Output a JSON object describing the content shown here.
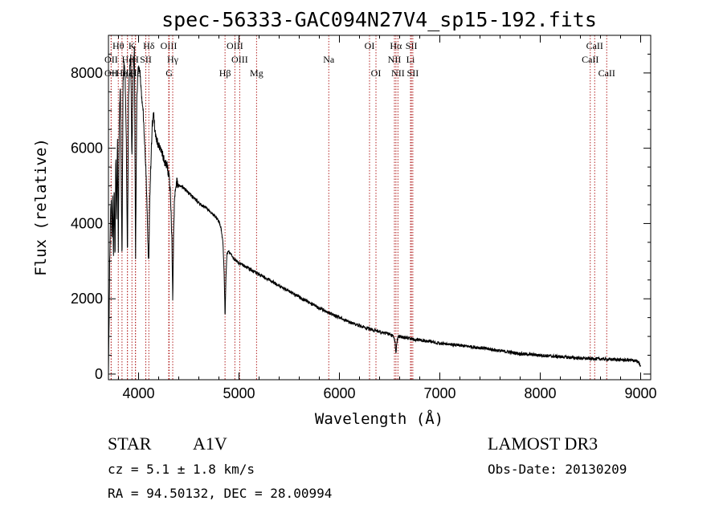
{
  "chart_data": {
    "type": "line",
    "title": "spec-56333-GAC094N27V4_sp15-192.fits",
    "xlabel": "Wavelength (Å)",
    "ylabel": "Flux (relative)",
    "xlim": [
      3700,
      9100
    ],
    "ylim": [
      -150,
      9000
    ],
    "xticks": [
      4000,
      5000,
      6000,
      7000,
      8000,
      9000
    ],
    "yticks": [
      0,
      2000,
      4000,
      6000,
      8000
    ],
    "series": [
      {
        "name": "flux",
        "anchors": [
          [
            3700,
            0
          ],
          [
            3705,
            1200
          ],
          [
            3712,
            2900
          ],
          [
            3720,
            4200
          ],
          [
            3728,
            4600
          ],
          [
            3735,
            3400
          ],
          [
            3742,
            4700
          ],
          [
            3750,
            3100
          ],
          [
            3757,
            5200
          ],
          [
            3765,
            2900
          ],
          [
            3773,
            5800
          ],
          [
            3782,
            4200
          ],
          [
            3790,
            6300
          ],
          [
            3798,
            3300
          ],
          [
            3808,
            6800
          ],
          [
            3818,
            7600
          ],
          [
            3826,
            5600
          ],
          [
            3835,
            2900
          ],
          [
            3845,
            7700
          ],
          [
            3855,
            8300
          ],
          [
            3866,
            7900
          ],
          [
            3878,
            6100
          ],
          [
            3889,
            3100
          ],
          [
            3900,
            7400
          ],
          [
            3910,
            8100
          ],
          [
            3922,
            8500
          ],
          [
            3933,
            5600
          ],
          [
            3945,
            7800
          ],
          [
            3958,
            8700
          ],
          [
            3970,
            3000
          ],
          [
            3982,
            7300
          ],
          [
            3995,
            8200
          ],
          [
            4005,
            8100
          ],
          [
            4015,
            8000
          ],
          [
            4030,
            7400
          ],
          [
            4045,
            7000
          ],
          [
            4062,
            6100
          ],
          [
            4075,
            5300
          ],
          [
            4085,
            4300
          ],
          [
            4095,
            3200
          ],
          [
            4102,
            3050
          ],
          [
            4110,
            4400
          ],
          [
            4120,
            5400
          ],
          [
            4135,
            6600
          ],
          [
            4150,
            6900
          ],
          [
            4165,
            6400
          ],
          [
            4185,
            6200
          ],
          [
            4205,
            6050
          ],
          [
            4230,
            5900
          ],
          [
            4260,
            5650
          ],
          [
            4285,
            5500
          ],
          [
            4305,
            5250
          ],
          [
            4320,
            4600
          ],
          [
            4332,
            3500
          ],
          [
            4340,
            1950
          ],
          [
            4348,
            3600
          ],
          [
            4356,
            4500
          ],
          [
            4366,
            4900
          ],
          [
            4380,
            5100
          ],
          [
            4400,
            5000
          ],
          [
            4450,
            4950
          ],
          [
            4500,
            4800
          ],
          [
            4560,
            4650
          ],
          [
            4620,
            4500
          ],
          [
            4680,
            4400
          ],
          [
            4740,
            4250
          ],
          [
            4790,
            4100
          ],
          [
            4820,
            3900
          ],
          [
            4840,
            3500
          ],
          [
            4852,
            2700
          ],
          [
            4861,
            1500
          ],
          [
            4870,
            2600
          ],
          [
            4880,
            3200
          ],
          [
            4900,
            3250
          ],
          [
            4950,
            3050
          ],
          [
            5000,
            2950
          ],
          [
            5100,
            2800
          ],
          [
            5200,
            2650
          ],
          [
            5300,
            2500
          ],
          [
            5400,
            2350
          ],
          [
            5500,
            2200
          ],
          [
            5600,
            2050
          ],
          [
            5700,
            1900
          ],
          [
            5800,
            1750
          ],
          [
            5900,
            1620
          ],
          [
            6000,
            1500
          ],
          [
            6100,
            1380
          ],
          [
            6200,
            1290
          ],
          [
            6300,
            1200
          ],
          [
            6400,
            1120
          ],
          [
            6500,
            1060
          ],
          [
            6540,
            1000
          ],
          [
            6556,
            800
          ],
          [
            6563,
            520
          ],
          [
            6570,
            800
          ],
          [
            6585,
            1000
          ],
          [
            6650,
            970
          ],
          [
            6750,
            920
          ],
          [
            6900,
            870
          ],
          [
            7000,
            820
          ],
          [
            7200,
            760
          ],
          [
            7400,
            700
          ],
          [
            7600,
            620
          ],
          [
            7800,
            540
          ],
          [
            8000,
            500
          ],
          [
            8200,
            460
          ],
          [
            8400,
            420
          ],
          [
            8600,
            400
          ],
          [
            8800,
            380
          ],
          [
            8950,
            360
          ],
          [
            8980,
            300
          ],
          [
            9000,
            200
          ]
        ]
      }
    ],
    "spectral_lines": [
      {
        "label": "OII",
        "wavelength": 3727,
        "row": 3
      },
      {
        "label": "Hθ",
        "wavelength": 3798,
        "row": 1
      },
      {
        "label": "OII",
        "wavelength": 3727,
        "row": 2
      },
      {
        "label": "Hη",
        "wavelength": 3835,
        "row": 3
      },
      {
        "label": "He",
        "wavelength": 3889,
        "row": 2
      },
      {
        "label": "Hζ",
        "wavelength": 3889,
        "row": 3
      },
      {
        "label": "K",
        "wavelength": 3934,
        "row": 1
      },
      {
        "label": "H",
        "wavelength": 3968,
        "row": 2
      },
      {
        "label": "Hε",
        "wavelength": 3970,
        "row": 3
      },
      {
        "label": "SII",
        "wavelength": 4072,
        "row": 2
      },
      {
        "label": "Hδ",
        "wavelength": 4102,
        "row": 1
      },
      {
        "label": "OIII",
        "wavelength": 4300,
        "row": 1
      },
      {
        "label": "Hγ",
        "wavelength": 4340,
        "row": 2
      },
      {
        "label": "G",
        "wavelength": 4305,
        "row": 3
      },
      {
        "label": "Hβ",
        "wavelength": 4861,
        "row": 3
      },
      {
        "label": "OIII",
        "wavelength": 4959,
        "row": 1
      },
      {
        "label": "OIII",
        "wavelength": 5007,
        "row": 2
      },
      {
        "label": "Mg",
        "wavelength": 5175,
        "row": 3
      },
      {
        "label": "Na",
        "wavelength": 5894,
        "row": 2
      },
      {
        "label": "OI",
        "wavelength": 6300,
        "row": 1
      },
      {
        "label": "OI",
        "wavelength": 6364,
        "row": 3
      },
      {
        "label": "Hα",
        "wavelength": 6563,
        "row": 1
      },
      {
        "label": "NII",
        "wavelength": 6548,
        "row": 2
      },
      {
        "label": "NII",
        "wavelength": 6583,
        "row": 3
      },
      {
        "label": "SII",
        "wavelength": 6717,
        "row": 1
      },
      {
        "label": "Li",
        "wavelength": 6708,
        "row": 2
      },
      {
        "label": "SII",
        "wavelength": 6731,
        "row": 3
      },
      {
        "label": "CaII",
        "wavelength": 8542,
        "row": 1
      },
      {
        "label": "CaII",
        "wavelength": 8498,
        "row": 2
      },
      {
        "label": "CaII",
        "wavelength": 8662,
        "row": 3
      }
    ],
    "line_marker_color": "#b22222",
    "line_color": "#000000"
  },
  "info": {
    "object_class": "STAR",
    "subclass": "A1V",
    "survey": "LAMOST DR3",
    "redshift": "cz = 5.1 ± 1.8 km/s",
    "obs_date": "Obs-Date: 20130209",
    "coords": "RA =  94.50132, DEC =  28.00994"
  }
}
